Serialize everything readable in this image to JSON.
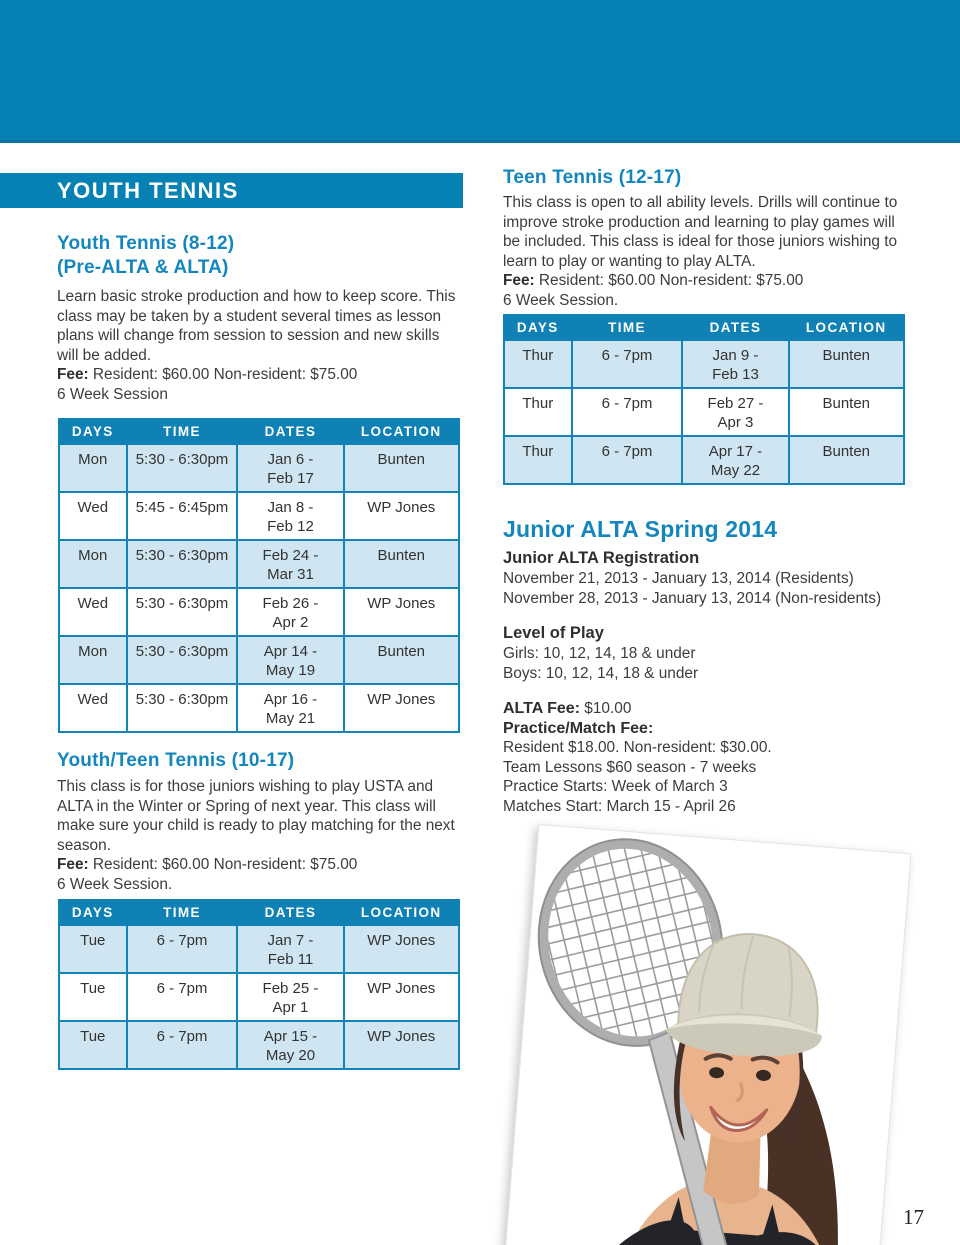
{
  "page": {
    "number": "17"
  },
  "banner": {
    "title": "YOUTH TENNIS"
  },
  "colors": {
    "banner_blue": "#0681b3",
    "heading_blue": "#1386be",
    "table_header_blue": "#0f81b4",
    "table_row_light_blue": "#cfe5f1",
    "body_text": "#3c3c3c"
  },
  "photo": {
    "name": "tennis-girl-with-racket-photo"
  },
  "sections": {
    "youth_tennis": {
      "title_line1": "Youth Tennis (8-12)",
      "title_line2": "(Pre-ALTA & ALTA)",
      "description": "Learn basic stroke production and how to keep score. This class may be taken by a student several times as lesson plans will change from session to session and new skills will be added.",
      "fee_label": "Fee:",
      "fee_text": " Resident: $60.00 Non-resident: $75.00",
      "session": "6 Week Session",
      "table": {
        "headers": [
          "DAYS",
          "TIME",
          "DATES",
          "LOCATION"
        ],
        "rows": [
          [
            "Mon",
            "5:30 - 6:30pm",
            "Jan 6 -\nFeb 17",
            "Bunten"
          ],
          [
            "Wed",
            "5:45 - 6:45pm",
            "Jan 8 -\nFeb 12",
            "WP Jones"
          ],
          [
            "Mon",
            "5:30 - 6:30pm",
            "Feb 24 -\nMar 31",
            "Bunten"
          ],
          [
            "Wed",
            "5:30 - 6:30pm",
            "Feb 26 -\nApr 2",
            "WP Jones"
          ],
          [
            "Mon",
            "5:30 - 6:30pm",
            "Apr 14 -\nMay 19",
            "Bunten"
          ],
          [
            "Wed",
            "5:30 - 6:30pm",
            "Apr 16 -\nMay 21",
            "WP Jones"
          ]
        ]
      }
    },
    "youth_teen_tennis": {
      "title": "Youth/Teen Tennis (10-17)",
      "description": "This class is for those juniors wishing to play USTA and ALTA in the Winter or Spring of next year. This class will make sure your child is ready to play matching for the next season.",
      "fee_label": "Fee:",
      "fee_text": " Resident: $60.00 Non-resident: $75.00",
      "session": "6 Week Session.",
      "table": {
        "headers": [
          "DAYS",
          "TIME",
          "DATES",
          "LOCATION"
        ],
        "rows": [
          [
            "Tue",
            "6 - 7pm",
            "Jan 7 -\nFeb 11",
            "WP Jones"
          ],
          [
            "Tue",
            "6 - 7pm",
            "Feb 25 -\nApr 1",
            "WP Jones"
          ],
          [
            "Tue",
            "6 - 7pm",
            "Apr 15 -\nMay 20",
            "WP Jones"
          ]
        ]
      }
    },
    "teen_tennis": {
      "title": "Teen Tennis (12-17)",
      "description": "This class is open to all ability levels. Drills will continue to improve stroke production and learning to play games will be included. This class is ideal for those juniors wishing to learn to play or wanting to play ALTA.",
      "fee_label": "Fee:",
      "fee_text": " Resident: $60.00 Non-resident: $75.00",
      "session": "6 Week Session.",
      "table": {
        "headers": [
          "DAYS",
          "TIME",
          "DATES",
          "LOCATION"
        ],
        "rows": [
          [
            "Thur",
            "6 - 7pm",
            "Jan 9 -\nFeb 13",
            "Bunten"
          ],
          [
            "Thur",
            "6 - 7pm",
            "Feb 27 -\nApr 3",
            "Bunten"
          ],
          [
            "Thur",
            "6 - 7pm",
            "Apr 17 -\nMay 22",
            "Bunten"
          ]
        ]
      }
    },
    "junior_alta": {
      "title": "Junior ALTA Spring 2014",
      "registration_heading": "Junior ALTA Registration",
      "registration_lines": [
        "November 21, 2013 - January 13, 2014 (Residents)",
        "November 28, 2013 - January 13, 2014 (Non-residents)"
      ],
      "level_heading": "Level of Play",
      "level_lines": [
        "Girls: 10, 12, 14, 18 & under",
        "Boys: 10, 12, 14, 18 & under"
      ],
      "alta_fee_label": "ALTA Fee:",
      "alta_fee_value": " $10.00",
      "practice_fee_label": "Practice/Match Fee:",
      "practice_lines": [
        "Resident $18.00. Non-resident: $30.00.",
        "Team Lessons $60 season - 7 weeks",
        "Practice Starts: Week of March 3",
        "Matches Start: March 15 - April 26"
      ]
    }
  }
}
